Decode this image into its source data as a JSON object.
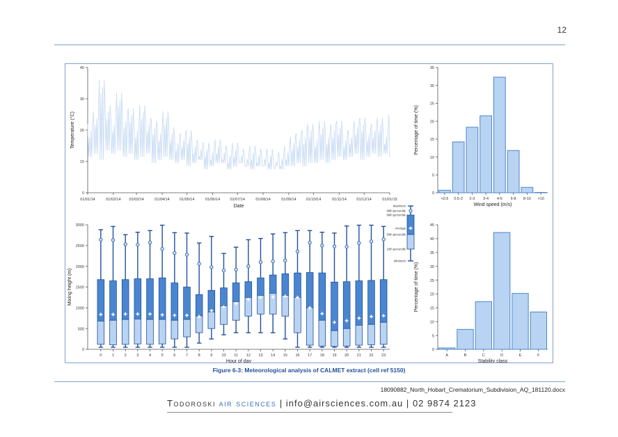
{
  "page_number": "12",
  "caption": "Figure 6-3: Meteorological analysis of CALMET extract (cell ref 5150)",
  "document_reference": "18090882_North_Hobart_Crematorium_Subdivision_AQ_181120.docx",
  "footer": {
    "company_name": "Todoroski",
    "company_accent": "air sciences",
    "separator": "|",
    "email": "info@airsciences.com.au",
    "phone": "02 9874 2123"
  },
  "colors": {
    "accent": "#1f4e9c",
    "rule": "#7f9fce",
    "box_dark": "#4a86d0",
    "box_light": "#b9d3f2",
    "line_light": "#c5d9f3"
  },
  "legend": {
    "labels": [
      "Maximum",
      "99th percentile",
      "90th percentile",
      "Average",
      "50th percentile",
      "10th percentile",
      "Minimum"
    ]
  },
  "chart_data": [
    {
      "type": "line",
      "xlabel": "Date",
      "ylabel": "Temperature (°C)",
      "ylim": [
        0,
        40
      ],
      "yticks": [
        0,
        10,
        20,
        30,
        40
      ],
      "x_ticks": [
        "01/01/14",
        "01/02/14",
        "01/03/14",
        "01/04/14",
        "01/05/14",
        "01/06/14",
        "01/07/14",
        "01/08/14",
        "01/09/14",
        "01/10/14",
        "01/11/14",
        "01/12/14",
        "01/01/15"
      ],
      "series": [
        {
          "x": [
            "01/01/14",
            "08/01/14",
            "15/01/14",
            "22/01/14",
            "29/01/14",
            "05/02/14",
            "12/02/14",
            "19/02/14",
            "26/02/14",
            "05/03/14",
            "12/03/14",
            "19/03/14",
            "26/03/14",
            "02/04/14",
            "09/04/14",
            "16/04/14",
            "23/04/14",
            "30/04/14",
            "07/05/14",
            "14/05/14",
            "21/05/14",
            "28/05/14",
            "04/06/14",
            "11/06/14",
            "18/06/14",
            "25/06/14",
            "02/07/14",
            "09/07/14",
            "16/07/14",
            "23/07/14",
            "30/07/14",
            "06/08/14",
            "13/08/14",
            "20/08/14",
            "27/08/14",
            "03/09/14",
            "10/09/14",
            "17/09/14",
            "24/09/14",
            "01/10/14",
            "08/10/14",
            "15/10/14",
            "22/10/14",
            "29/10/14",
            "05/11/14",
            "12/11/14",
            "19/11/14",
            "26/11/14",
            "03/12/14",
            "10/12/14",
            "17/12/14",
            "24/12/14",
            "31/12/14"
          ],
          "min": [
            10,
            11,
            9,
            12,
            11,
            12,
            10,
            11,
            9,
            10,
            11,
            8,
            9,
            10,
            9,
            8,
            9,
            7,
            8,
            9,
            6,
            7,
            8,
            8,
            6,
            7,
            8,
            7,
            6,
            7,
            7,
            6,
            7,
            6,
            7,
            7,
            8,
            7,
            8,
            8,
            9,
            8,
            9,
            10,
            9,
            10,
            11,
            9,
            10,
            11,
            10,
            11,
            10
          ],
          "max": [
            22,
            26,
            36,
            28,
            24,
            32,
            25,
            27,
            22,
            28,
            24,
            23,
            21,
            26,
            21,
            18,
            19,
            20,
            17,
            16,
            16,
            15,
            17,
            15,
            14,
            16,
            14,
            13,
            15,
            14,
            13,
            14,
            12,
            13,
            15,
            18,
            19,
            20,
            22,
            19,
            23,
            20,
            22,
            23,
            19,
            20,
            23,
            24,
            21,
            22,
            24,
            20,
            25
          ]
        }
      ]
    },
    {
      "type": "bar",
      "xlabel": "Wind speed (m/s)",
      "ylabel": "Percentage of time (%)",
      "ylim": [
        0,
        35
      ],
      "yticks": [
        0,
        5,
        10,
        15,
        20,
        25,
        30,
        35
      ],
      "categories": [
        "<0.5",
        "0.5-2",
        "2-3",
        "3-4",
        "4-6",
        "6-8",
        "8-10",
        ">10"
      ],
      "values": [
        0.7,
        14.2,
        18.3,
        21.5,
        32.3,
        11.8,
        1.5,
        0.1
      ]
    },
    {
      "type": "box",
      "xlabel": "Hour of day",
      "ylabel": "Mixing height (m)",
      "ylim": [
        0,
        3000
      ],
      "yticks": [
        0,
        500,
        1000,
        1500,
        2000,
        2500,
        3000
      ],
      "categories": [
        "0",
        "1",
        "2",
        "3",
        "4",
        "5",
        "6",
        "7",
        "8",
        "9",
        "10",
        "11",
        "12",
        "13",
        "14",
        "15",
        "16",
        "17",
        "18",
        "19",
        "20",
        "21",
        "22",
        "23"
      ],
      "min": [
        50,
        50,
        50,
        50,
        50,
        50,
        50,
        50,
        150,
        250,
        350,
        400,
        400,
        400,
        400,
        250,
        50,
        50,
        50,
        50,
        50,
        50,
        50,
        50
      ],
      "p10": [
        120,
        110,
        120,
        130,
        120,
        130,
        250,
        300,
        400,
        500,
        600,
        700,
        800,
        850,
        850,
        800,
        400,
        100,
        80,
        70,
        80,
        100,
        110,
        120
      ],
      "p50": [
        680,
        700,
        720,
        730,
        720,
        720,
        700,
        720,
        800,
        900,
        1050,
        1150,
        1250,
        1300,
        1350,
        1300,
        1250,
        1000,
        700,
        450,
        500,
        580,
        600,
        650
      ],
      "mean": [
        840,
        840,
        850,
        850,
        850,
        830,
        820,
        820,
        790,
        930,
        1020,
        1100,
        1200,
        1250,
        1260,
        1280,
        1250,
        1000,
        860,
        650,
        690,
        750,
        790,
        810
      ],
      "p90": [
        1680,
        1650,
        1680,
        1700,
        1700,
        1720,
        1600,
        1500,
        1320,
        1420,
        1480,
        1600,
        1630,
        1720,
        1790,
        1820,
        1840,
        1850,
        1840,
        1620,
        1630,
        1650,
        1660,
        1680
      ],
      "p99": [
        2640,
        2630,
        2530,
        2520,
        2570,
        2420,
        2320,
        2280,
        2060,
        1980,
        1900,
        1920,
        2000,
        2100,
        2120,
        2140,
        2360,
        2570,
        2500,
        2480,
        2470,
        2560,
        2600,
        2650
      ],
      "max": [
        2880,
        2960,
        2760,
        2820,
        2860,
        2990,
        2810,
        2800,
        2560,
        2720,
        2310,
        2460,
        2640,
        2670,
        2780,
        2810,
        2860,
        2860,
        2820,
        2800,
        2970,
        2990,
        2990,
        2960
      ]
    },
    {
      "type": "bar",
      "xlabel": "Stability class",
      "ylabel": "Percentage of time (%)",
      "ylim": [
        0,
        45
      ],
      "yticks": [
        0,
        5,
        10,
        15,
        20,
        25,
        30,
        35,
        40,
        45
      ],
      "categories": [
        "A",
        "B",
        "C",
        "D",
        "E",
        "F"
      ],
      "values": [
        0.5,
        7.2,
        17.2,
        42.2,
        20.2,
        13.5
      ]
    }
  ]
}
